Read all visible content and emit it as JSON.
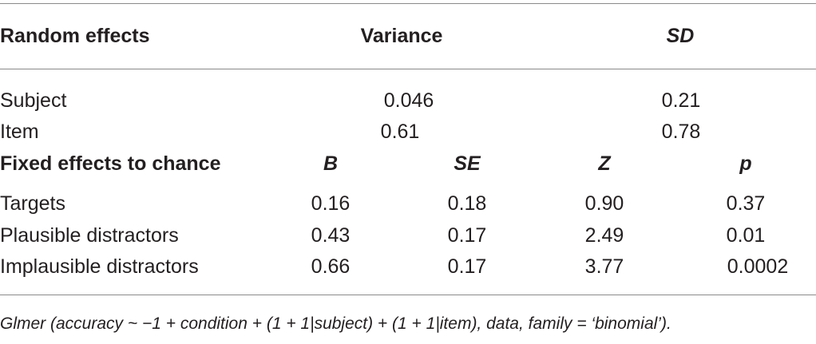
{
  "random_header": {
    "label": "Random effects",
    "variance": "Variance",
    "sd": "SD"
  },
  "random_rows": [
    {
      "label": "Subject",
      "variance": "0.046",
      "sd": "0.21"
    },
    {
      "label": "Item",
      "variance": "0.61",
      "sd": "0.78"
    }
  ],
  "fixed_header": {
    "label": "Fixed effects to chance",
    "b": "B",
    "se": "SE",
    "z": "Z",
    "p": "p"
  },
  "fixed_rows": [
    {
      "label": "Targets",
      "b": "0.16",
      "se": "0.18",
      "z": "0.90",
      "p": "0.37"
    },
    {
      "label": "Plausible distractors",
      "b": "0.43",
      "se": "0.17",
      "z": "2.49",
      "p": "0.01"
    },
    {
      "label": "Implausible distractors",
      "b": "0.66",
      "se": "0.17",
      "z": "3.77",
      "p": "0.0002"
    }
  ],
  "footnote": "Glmer (accuracy ~ −1 + condition + (1 + 1|subject) + (1 + 1|item), data, family = ‘binomial’)."
}
